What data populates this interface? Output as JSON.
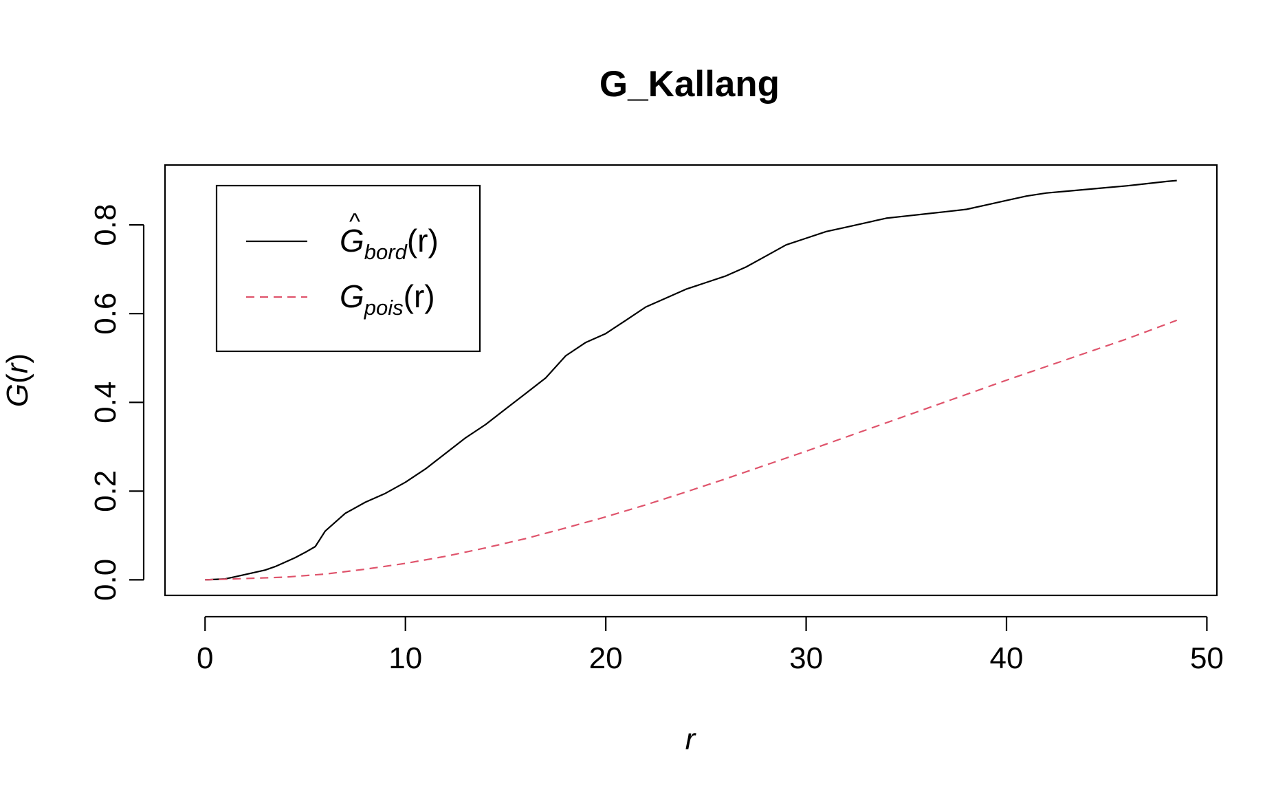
{
  "chart_data": {
    "type": "line",
    "title": "G_Kallang",
    "xlabel": "r",
    "ylabel": "G(r)",
    "xlim": [
      -2,
      50.5
    ],
    "ylim": [
      -0.035,
      0.935
    ],
    "xticks": [
      0,
      10,
      20,
      30,
      40,
      50
    ],
    "xtick_labels": [
      "0",
      "10",
      "20",
      "30",
      "40",
      "50"
    ],
    "yticks": [
      0.0,
      0.2,
      0.4,
      0.6,
      0.8
    ],
    "ytick_labels": [
      "0.0",
      "0.2",
      "0.4",
      "0.6",
      "0.8"
    ],
    "grid": false,
    "legend_position": "top-left",
    "series": [
      {
        "name": "Ĝbord(r)",
        "legend_main": "G",
        "legend_hat": "^",
        "legend_sub": "bord",
        "legend_arg": "(r)",
        "color": "#000000",
        "dash": "solid",
        "x": [
          0,
          1,
          1.5,
          2,
          2.5,
          3,
          3.5,
          4,
          4.5,
          5,
          5.5,
          6,
          7,
          8,
          9,
          10,
          11,
          12,
          13,
          14,
          15,
          16,
          17,
          18,
          19,
          20,
          21,
          22,
          23,
          24,
          25,
          26,
          27,
          28,
          29,
          30,
          31,
          32,
          33,
          34,
          35,
          36,
          37,
          38,
          39,
          40,
          41,
          42,
          43,
          44,
          45,
          46,
          47,
          48,
          48.5
        ],
        "y": [
          0,
          0.002,
          0.007,
          0.012,
          0.017,
          0.022,
          0.03,
          0.04,
          0.05,
          0.062,
          0.075,
          0.11,
          0.15,
          0.175,
          0.195,
          0.22,
          0.25,
          0.285,
          0.32,
          0.35,
          0.385,
          0.42,
          0.455,
          0.505,
          0.535,
          0.555,
          0.585,
          0.615,
          0.635,
          0.655,
          0.67,
          0.685,
          0.705,
          0.73,
          0.755,
          0.77,
          0.785,
          0.795,
          0.805,
          0.815,
          0.82,
          0.825,
          0.83,
          0.835,
          0.845,
          0.855,
          0.865,
          0.872,
          0.876,
          0.88,
          0.884,
          0.888,
          0.893,
          0.898,
          0.9
        ]
      },
      {
        "name": "Gpois(r)",
        "legend_main": "G",
        "legend_hat": "",
        "legend_sub": "pois",
        "legend_arg": "(r)",
        "color": "#DF536B",
        "dash": "dashed",
        "x": [
          0,
          2,
          4,
          6,
          8,
          10,
          12,
          14,
          16,
          18,
          20,
          22,
          24,
          26,
          28,
          30,
          32,
          34,
          36,
          38,
          40,
          42,
          44,
          46,
          48.5
        ],
        "y": [
          0,
          0.003,
          0.006,
          0.013,
          0.024,
          0.037,
          0.053,
          0.072,
          0.093,
          0.117,
          0.142,
          0.169,
          0.198,
          0.228,
          0.259,
          0.29,
          0.322,
          0.354,
          0.386,
          0.418,
          0.45,
          0.481,
          0.512,
          0.543,
          0.585
        ]
      }
    ]
  }
}
